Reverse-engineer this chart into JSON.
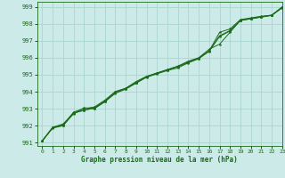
{
  "xlabel": "Graphe pression niveau de la mer (hPa)",
  "bg_color": "#cceae7",
  "grid_color": "#aad4d0",
  "line_color": "#1a6b1a",
  "marker_color": "#1a6b1a",
  "xlim": [
    -0.5,
    23
  ],
  "ylim": [
    990.8,
    999.3
  ],
  "yticks": [
    991,
    992,
    993,
    994,
    995,
    996,
    997,
    998,
    999
  ],
  "xticks": [
    0,
    1,
    2,
    3,
    4,
    5,
    6,
    7,
    8,
    9,
    10,
    11,
    12,
    13,
    14,
    15,
    16,
    17,
    18,
    19,
    20,
    21,
    22,
    23
  ],
  "lines": [
    [
      991.1,
      991.9,
      992.0,
      992.8,
      993.0,
      993.1,
      993.5,
      994.0,
      994.2,
      994.6,
      994.9,
      995.1,
      995.3,
      995.5,
      995.8,
      996.0,
      996.5,
      996.8,
      997.5,
      998.2,
      998.3,
      998.4,
      998.5,
      999.0
    ],
    [
      991.1,
      991.85,
      992.0,
      992.7,
      993.05,
      993.0,
      993.4,
      993.9,
      994.15,
      994.5,
      994.85,
      995.05,
      995.25,
      995.4,
      995.7,
      995.95,
      996.4,
      997.5,
      997.7,
      998.25,
      998.35,
      998.45,
      998.5,
      998.95
    ],
    [
      991.1,
      991.9,
      992.1,
      992.75,
      992.9,
      993.05,
      993.45,
      994.0,
      994.2,
      994.55,
      994.9,
      995.1,
      995.3,
      995.5,
      995.75,
      995.98,
      996.4,
      997.3,
      997.6,
      998.2,
      998.3,
      998.4,
      998.5,
      998.95
    ],
    [
      991.1,
      991.88,
      992.05,
      992.72,
      992.92,
      993.02,
      993.42,
      993.95,
      994.18,
      994.52,
      994.88,
      995.08,
      995.28,
      995.48,
      995.72,
      995.95,
      996.38,
      997.25,
      997.58,
      998.22,
      998.32,
      998.42,
      998.52,
      998.98
    ]
  ],
  "xlabel_fontsize": 5.5,
  "ytick_fontsize": 5.0,
  "xtick_fontsize": 4.5
}
